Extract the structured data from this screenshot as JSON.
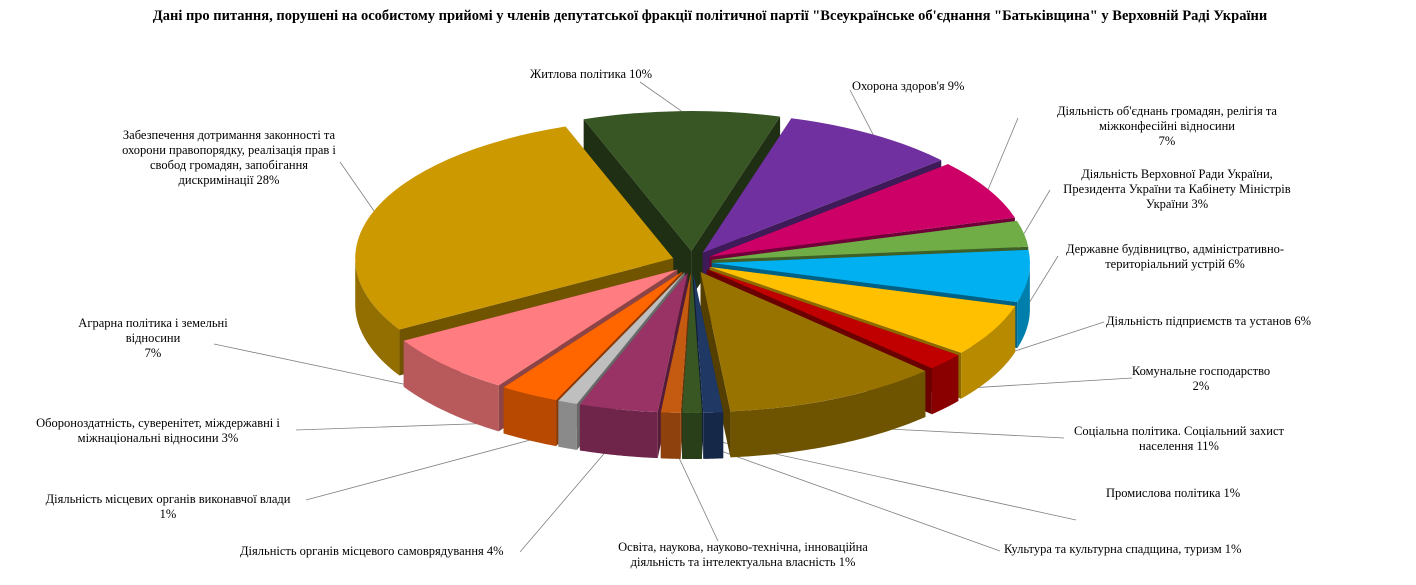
{
  "chart_data": {
    "type": "pie",
    "title": "Дані про питання, порушені на особистому прийомі у членів депутатської фракції політичної партії \"Всеукраїнське об'єднання \"Батьківщина\" у Верховній Раді України",
    "slices": [
      {
        "label": "Житлова політика  10%",
        "value": 10,
        "color": "#375623"
      },
      {
        "label": "Охорона здоров'я 9%",
        "value": 9,
        "color": "#7030A0"
      },
      {
        "label": "Діяльність  об'єднань громадян, релігія та міжконфесійні відносини 7%",
        "value": 7,
        "color": "#CC0066"
      },
      {
        "label": "Діяльність  Верховної Ради України, Президента  України та Кабінету  Міністрів України 3%",
        "value": 3,
        "color": "#70AD47"
      },
      {
        "label": "Державне будівництво,  адміністративно-територіальний  устрій 6%",
        "value": 6,
        "color": "#00B0F0"
      },
      {
        "label": "Діяльність  підприємств та установ 6%",
        "value": 6,
        "color": "#FFC000"
      },
      {
        "label": "Комунальне господарство 2%",
        "value": 2,
        "color": "#C00000"
      },
      {
        "label": "Соціальна політика.  Соціальний захист населення 11%",
        "value": 11,
        "color": "#997300"
      },
      {
        "label": "Промислова політика  1%",
        "value": 1,
        "color": "#1F3864"
      },
      {
        "label": "Культура та культурна спадщина, туризм 1%",
        "value": 1,
        "color": "#385723"
      },
      {
        "label": "Освіта,  наукова, науково-технічна,  інноваційна діяльність  та інтелектуальна  власність 1%",
        "value": 1,
        "color": "#C55A11"
      },
      {
        "label": "Діяльність  органів місцевого самоврядування 4%",
        "value": 4,
        "color": "#993366"
      },
      {
        "label": "Діяльність  місцевих органів виконавчої влади 1%",
        "value": 1,
        "color": "#BFBFBF"
      },
      {
        "label": "Обороноздатність,  суверенітет,  міждержавні  і міжнаціональні  відносини 3%",
        "value": 3,
        "color": "#FF6600"
      },
      {
        "label": "Аграрна політика  і земельні відносини 7%",
        "value": 7,
        "color": "#FF7C80"
      },
      {
        "label": "Забезпечення дотримання законності та охорони правопорядку, реалізація прав і свобод громадян, запобігання дискримінації  28%",
        "value": 28,
        "color": "#CC9900"
      }
    ],
    "legend": "none"
  },
  "labels": {
    "housing": [
      "Житлова політика  10%"
    ],
    "health": [
      "Охорона здоров'я 9%"
    ],
    "unions": [
      "Діяльність  об'єднань громадян, релігія та",
      "міжконфесійні  відносини",
      "7%"
    ],
    "vru": [
      "Діяльність  Верховної Ради України,",
      "Президента  України та Кабінету  Міністрів",
      "України 3%"
    ],
    "state": [
      "Державне будівництво,  адміністративно-",
      "територіальний  устрій 6%"
    ],
    "enterprises": [
      "Діяльність  підприємств та установ 6%"
    ],
    "communal": [
      "Комунальне господарство",
      "2%"
    ],
    "social": [
      "Соціальна політика.  Соціальний захист",
      "населення 11%"
    ],
    "industry": [
      "Промислова політика  1%"
    ],
    "culture": [
      "Культура та культурна спадщина, туризм 1%"
    ],
    "education": [
      "Освіта,  наукова, науково-технічна,  інноваційна",
      "діяльність  та інтелектуальна  власність 1%"
    ],
    "localgov": [
      "Діяльність  органів місцевого самоврядування 4%"
    ],
    "localexec": [
      "Діяльність  місцевих органів виконавчої влади",
      "1%"
    ],
    "defense": [
      "Обороноздатність,  суверенітет,  міждержавні  і",
      "міжнаціональні  відносини 3%"
    ],
    "agrarian": [
      "Аграрна політика  і земельні",
      "відносини",
      "7%"
    ],
    "law": [
      "Забезпечення дотримання законності та",
      "охорони правопорядку, реалізація прав і",
      "свобод громадян, запобігання",
      "дискримінації  28%"
    ]
  }
}
